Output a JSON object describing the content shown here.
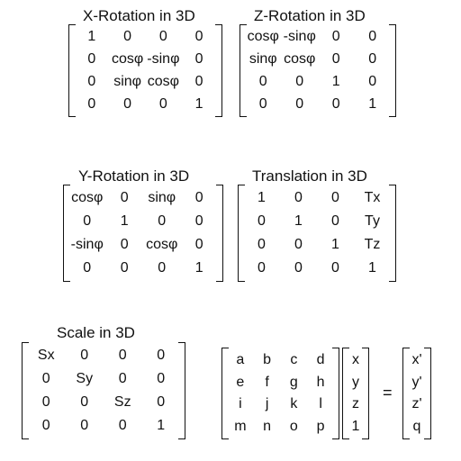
{
  "xRotation": {
    "title": "X-Rotation in 3D",
    "rows": [
      [
        "1",
        "0",
        "0",
        "0"
      ],
      [
        "0",
        "cosφ",
        "-sinφ",
        "0"
      ],
      [
        "0",
        "sinφ",
        "cosφ",
        "0"
      ],
      [
        "0",
        "0",
        "0",
        "1"
      ]
    ]
  },
  "zRotation": {
    "title": "Z-Rotation in 3D",
    "rows": [
      [
        "cosφ",
        "-sinφ",
        "0",
        "0"
      ],
      [
        "sinφ",
        "cosφ",
        "0",
        "0"
      ],
      [
        "0",
        "0",
        "1",
        "0"
      ],
      [
        "0",
        "0",
        "0",
        "1"
      ]
    ]
  },
  "yRotation": {
    "title": "Y-Rotation in 3D",
    "rows": [
      [
        "cosφ",
        "0",
        "sinφ",
        "0"
      ],
      [
        "0",
        "1",
        "0",
        "0"
      ],
      [
        "-sinφ",
        "0",
        "cosφ",
        "0"
      ],
      [
        "0",
        "0",
        "0",
        "1"
      ]
    ]
  },
  "translation": {
    "title": "Translation in 3D",
    "rows": [
      [
        "1",
        "0",
        "0",
        "Tx"
      ],
      [
        "0",
        "1",
        "0",
        "Ty"
      ],
      [
        "0",
        "0",
        "1",
        "Tz"
      ],
      [
        "0",
        "0",
        "0",
        "1"
      ]
    ]
  },
  "scale": {
    "title": "Scale in 3D",
    "rows": [
      [
        "Sx",
        "0",
        "0",
        "0"
      ],
      [
        "0",
        "Sy",
        "0",
        "0"
      ],
      [
        "0",
        "0",
        "Sz",
        "0"
      ],
      [
        "0",
        "0",
        "0",
        "1"
      ]
    ]
  },
  "equation": {
    "matrix": [
      [
        "a",
        "b",
        "c",
        "d"
      ],
      [
        "e",
        "f",
        "g",
        "h"
      ],
      [
        "i",
        "j",
        "k",
        "l"
      ],
      [
        "m",
        "n",
        "o",
        "p"
      ]
    ],
    "input": [
      "x",
      "y",
      "z",
      "1"
    ],
    "operator": "=",
    "output": [
      "x'",
      "y'",
      "z'",
      "q"
    ]
  }
}
